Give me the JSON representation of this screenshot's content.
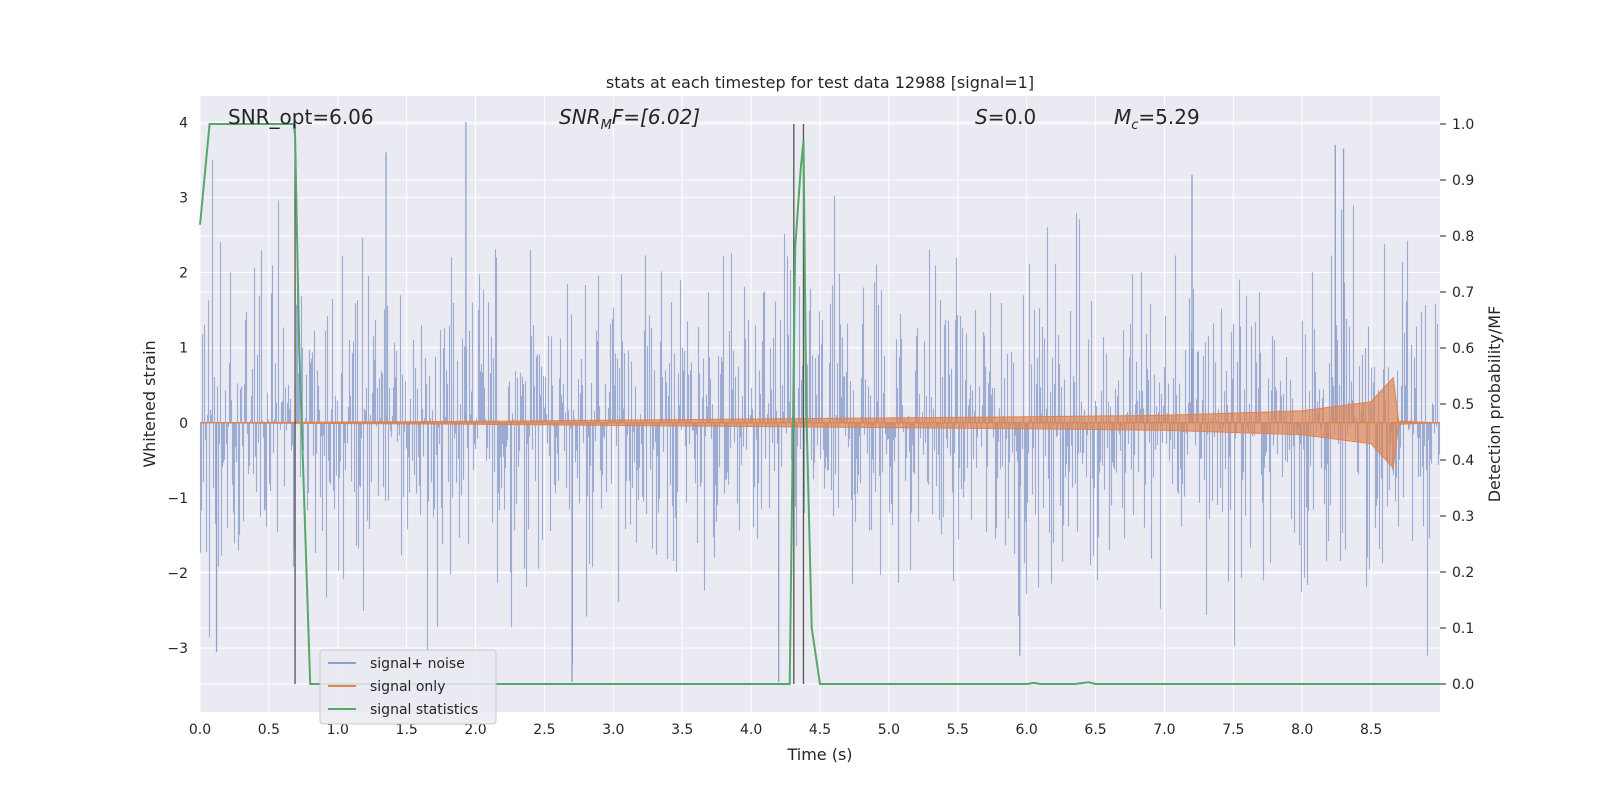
{
  "chart_data": {
    "type": "line",
    "title": "stats at each timestep for test data 12988 [signal=1]",
    "xlabel": "Time (s)",
    "ylabel_left": "Whitened strain",
    "ylabel_right": "Detection probability/MF",
    "xlim": [
      0.0,
      9.0
    ],
    "ylim_left": [
      -3.85,
      4.35
    ],
    "ylim_right": [
      -0.05,
      1.05
    ],
    "x_ticks": [
      "0.0",
      "0.5",
      "1.0",
      "1.5",
      "2.0",
      "2.5",
      "3.0",
      "3.5",
      "4.0",
      "4.5",
      "5.0",
      "5.5",
      "6.0",
      "6.5",
      "7.0",
      "7.5",
      "8.0",
      "8.5"
    ],
    "y_left_ticks": [
      "4",
      "3",
      "2",
      "1",
      "0",
      "−1",
      "−2",
      "−3"
    ],
    "y_right_ticks": [
      "1.0",
      "0.9",
      "0.8",
      "0.7",
      "0.6",
      "0.5",
      "0.4",
      "0.3",
      "0.2",
      "0.1",
      "0.0"
    ],
    "grid": true,
    "legend_position": "lower-left",
    "annotations": {
      "snr_opt": "SNR_opt=6.06",
      "snr_mf_var": "SNR",
      "snr_mf_sub": "M",
      "snr_mf_rest": "F=[6.02]",
      "s_var": "S",
      "s_rest": "=0.0",
      "mc_var": "M",
      "mc_sub": "c",
      "mc_rest": "=5.29"
    },
    "vertical_lines_x": [
      0.69,
      4.31,
      4.38
    ],
    "vertical_line_range": [
      0.0,
      1.0
    ],
    "series": [
      {
        "name": "signal+ noise",
        "color": "#8da0cb",
        "axis": "left",
        "description": "whitened noisy strain, roughly within ±3.5",
        "sample_spikes": [
          {
            "x": 1.93,
            "y": 4.0
          },
          {
            "x": 1.35,
            "y": 3.6
          },
          {
            "x": 8.24,
            "y": 3.7
          },
          {
            "x": 8.3,
            "y": 3.65
          },
          {
            "x": 7.2,
            "y": 3.3
          },
          {
            "x": 4.2,
            "y": -3.45
          },
          {
            "x": 2.7,
            "y": -3.45
          },
          {
            "x": 5.95,
            "y": -3.1
          },
          {
            "x": 0.12,
            "y": -3.05
          }
        ]
      },
      {
        "name": "signal only",
        "color": "#dd8452",
        "axis": "left",
        "description": "chirp growing from ~0 to peak at ~8.66 s",
        "amplitude_envelope": [
          {
            "x": 0.0,
            "amp": 0.0
          },
          {
            "x": 2.0,
            "amp": 0.02
          },
          {
            "x": 4.0,
            "amp": 0.05
          },
          {
            "x": 6.0,
            "amp": 0.08
          },
          {
            "x": 7.0,
            "amp": 0.1
          },
          {
            "x": 8.0,
            "amp": 0.16
          },
          {
            "x": 8.5,
            "amp": 0.28
          },
          {
            "x": 8.66,
            "amp": 0.6
          },
          {
            "x": 8.7,
            "amp": 0.02
          },
          {
            "x": 9.0,
            "amp": 0.0
          }
        ]
      },
      {
        "name": "signal statistics",
        "color": "#55a868",
        "axis": "right",
        "x": [
          0.0,
          0.07,
          0.12,
          0.68,
          0.69,
          0.72,
          0.8,
          4.2,
          4.28,
          4.32,
          4.36,
          4.38,
          4.4,
          4.44,
          4.5,
          6.0,
          6.05,
          6.1,
          6.35,
          6.45,
          6.5,
          6.55,
          9.0
        ],
        "values": [
          0.82,
          1.0,
          1.0,
          1.0,
          0.98,
          0.6,
          0.0,
          0.0,
          0.0,
          0.78,
          0.92,
          0.97,
          0.5,
          0.1,
          0.0,
          0.0,
          0.002,
          0.0,
          0.0,
          0.003,
          0.0,
          0.0,
          0.0
        ]
      }
    ]
  }
}
